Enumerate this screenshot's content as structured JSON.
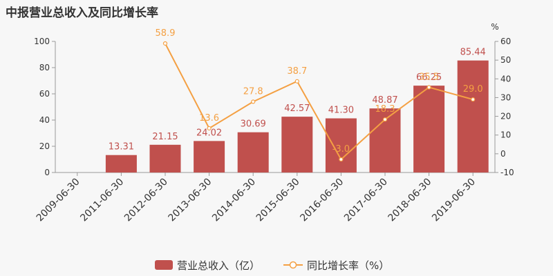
{
  "title": "中报营业总收入及同比增长率",
  "colors": {
    "bar": "#c0504d",
    "line": "#f4a043",
    "axis": "#999999"
  },
  "chart_data": {
    "type": "bar",
    "categories": [
      "2009-06-30",
      "2011-06-30",
      "2012-06-30",
      "2013-06-30",
      "2014-06-30",
      "2015-06-30",
      "2016-06-30",
      "2017-06-30",
      "2018-06-30",
      "2019-06-30"
    ],
    "series": [
      {
        "name": "营业总收入（亿）",
        "type": "bar",
        "axis": "left",
        "values": [
          null,
          13.31,
          21.15,
          24.02,
          30.69,
          42.57,
          41.3,
          48.87,
          66.25,
          85.44
        ],
        "labels": [
          "",
          "13.31",
          "21.15",
          "24.02",
          "30.69",
          "42.57",
          "41.30",
          "48.87",
          "66.25",
          "85.44"
        ]
      },
      {
        "name": "同比增长率（%）",
        "type": "line",
        "axis": "right",
        "values": [
          null,
          null,
          58.9,
          13.6,
          27.8,
          38.7,
          -3.0,
          18.3,
          35.5,
          29.0
        ],
        "labels": [
          "",
          "",
          "58.9",
          "13.6",
          "27.8",
          "38.7",
          "-3.0",
          "18.3",
          "35.5",
          "29.0"
        ]
      }
    ],
    "ylim_left": [
      0,
      100
    ],
    "yticks_left": [
      0,
      20,
      40,
      60,
      80,
      100
    ],
    "ylim_right": [
      -10,
      60
    ],
    "yticks_right": [
      -10,
      0,
      10,
      20,
      30,
      40,
      50,
      60
    ],
    "right_unit": "%",
    "legend": "bottom-center",
    "grid": false
  }
}
